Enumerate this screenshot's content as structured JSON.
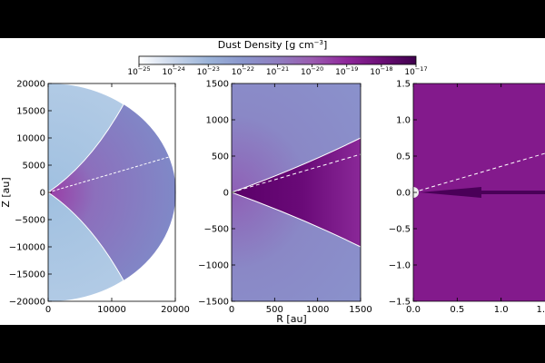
{
  "chart_data": {
    "colorbar": {
      "title": "Dust Density [g cm",
      "title_exp": "−3",
      "title_close": "]",
      "ticks": [
        {
          "base": "10",
          "exp": "−25"
        },
        {
          "base": "10",
          "exp": "−24"
        },
        {
          "base": "10",
          "exp": "−23"
        },
        {
          "base": "10",
          "exp": "−22"
        },
        {
          "base": "10",
          "exp": "−21"
        },
        {
          "base": "10",
          "exp": "−20"
        },
        {
          "base": "10",
          "exp": "−19"
        },
        {
          "base": "10",
          "exp": "−18"
        },
        {
          "base": "10",
          "exp": "−17"
        }
      ],
      "range_log": [
        -25,
        -17
      ],
      "colors": [
        "#ffffff",
        "#c9d6ea",
        "#9bb3d8",
        "#8a96cc",
        "#8f7ec0",
        "#9a5cb0",
        "#8e279a",
        "#6b0f76",
        "#3f004d"
      ]
    },
    "shared_xlabel": "R [au]",
    "panels": [
      {
        "type": "heatmap",
        "ylabel": "Z [au]",
        "xlim": [
          0,
          20000
        ],
        "ylim": [
          -20000,
          20000
        ],
        "xticks": [
          "0",
          "10000",
          "20000"
        ],
        "yticks": [
          "20000",
          "15000",
          "10000",
          "5000",
          "0",
          "−5000",
          "−10000",
          "−15000",
          "−20000"
        ]
      },
      {
        "type": "heatmap",
        "xlim": [
          0,
          1500
        ],
        "ylim": [
          -1500,
          1500
        ],
        "xticks": [
          "0",
          "500",
          "1000",
          "1500"
        ],
        "yticks": [
          "1500",
          "1000",
          "500",
          "0",
          "−500",
          "−1000",
          "−1500"
        ]
      },
      {
        "type": "heatmap",
        "xlim": [
          0,
          1.5
        ],
        "ylim": [
          -1.5,
          1.5
        ],
        "xticks": [
          "0.0",
          "0.5",
          "1.0",
          "1."
        ],
        "yticks": [
          "1.5",
          "1.0",
          "0.5",
          "0.0",
          "−0.5",
          "−1.0",
          "−1.5"
        ]
      }
    ]
  }
}
